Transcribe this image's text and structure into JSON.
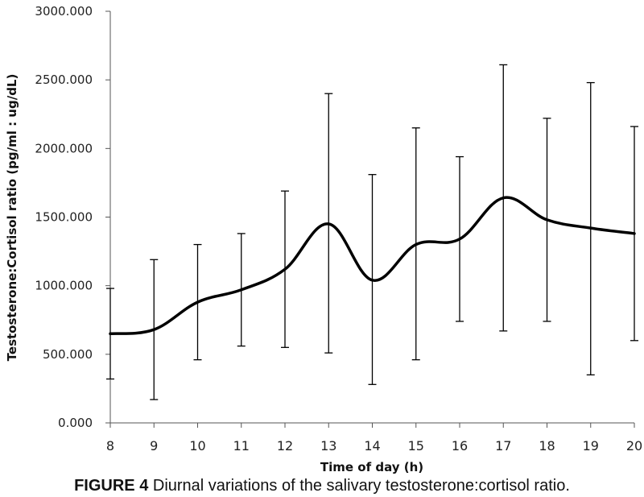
{
  "caption": {
    "figure_number": "FIGURE 4",
    "text": "Diurnal variations of the salivary testosterone:cortisol ratio."
  },
  "chart_data": {
    "type": "line",
    "title": "",
    "xlabel": "Time of day (h)",
    "ylabel": "Testosterone:Cortisol ratio (pg/ml : ug/dL)",
    "x": [
      8,
      9,
      10,
      11,
      12,
      13,
      14,
      15,
      16,
      17,
      18,
      19,
      20
    ],
    "x_tick_labels": [
      "8",
      "9",
      "10",
      "11",
      "12",
      "13",
      "14",
      "15",
      "16",
      "17",
      "18",
      "19",
      "20"
    ],
    "y_tick_values": [
      0,
      500,
      1000,
      1500,
      2000,
      2500,
      3000
    ],
    "y_tick_labels": [
      "0.000",
      "500.000",
      "1000.000",
      "1500.000",
      "2000.000",
      "2500.000",
      "3000.000"
    ],
    "ylim": [
      0,
      3000
    ],
    "xlim": [
      8,
      20
    ],
    "grid": false,
    "series": [
      {
        "name": "Testosterone:Cortisol ratio",
        "color": "#000000",
        "values": [
          650,
          680,
          880,
          970,
          1120,
          1450,
          1040,
          1300,
          1340,
          1640,
          1480,
          1420,
          1380
        ],
        "error_upper": [
          980,
          1190,
          1300,
          1380,
          1690,
          2400,
          1810,
          2150,
          1940,
          2610,
          2220,
          2480,
          2160
        ],
        "error_lower": [
          320,
          170,
          460,
          560,
          550,
          510,
          280,
          460,
          740,
          670,
          740,
          350,
          600
        ]
      }
    ]
  }
}
